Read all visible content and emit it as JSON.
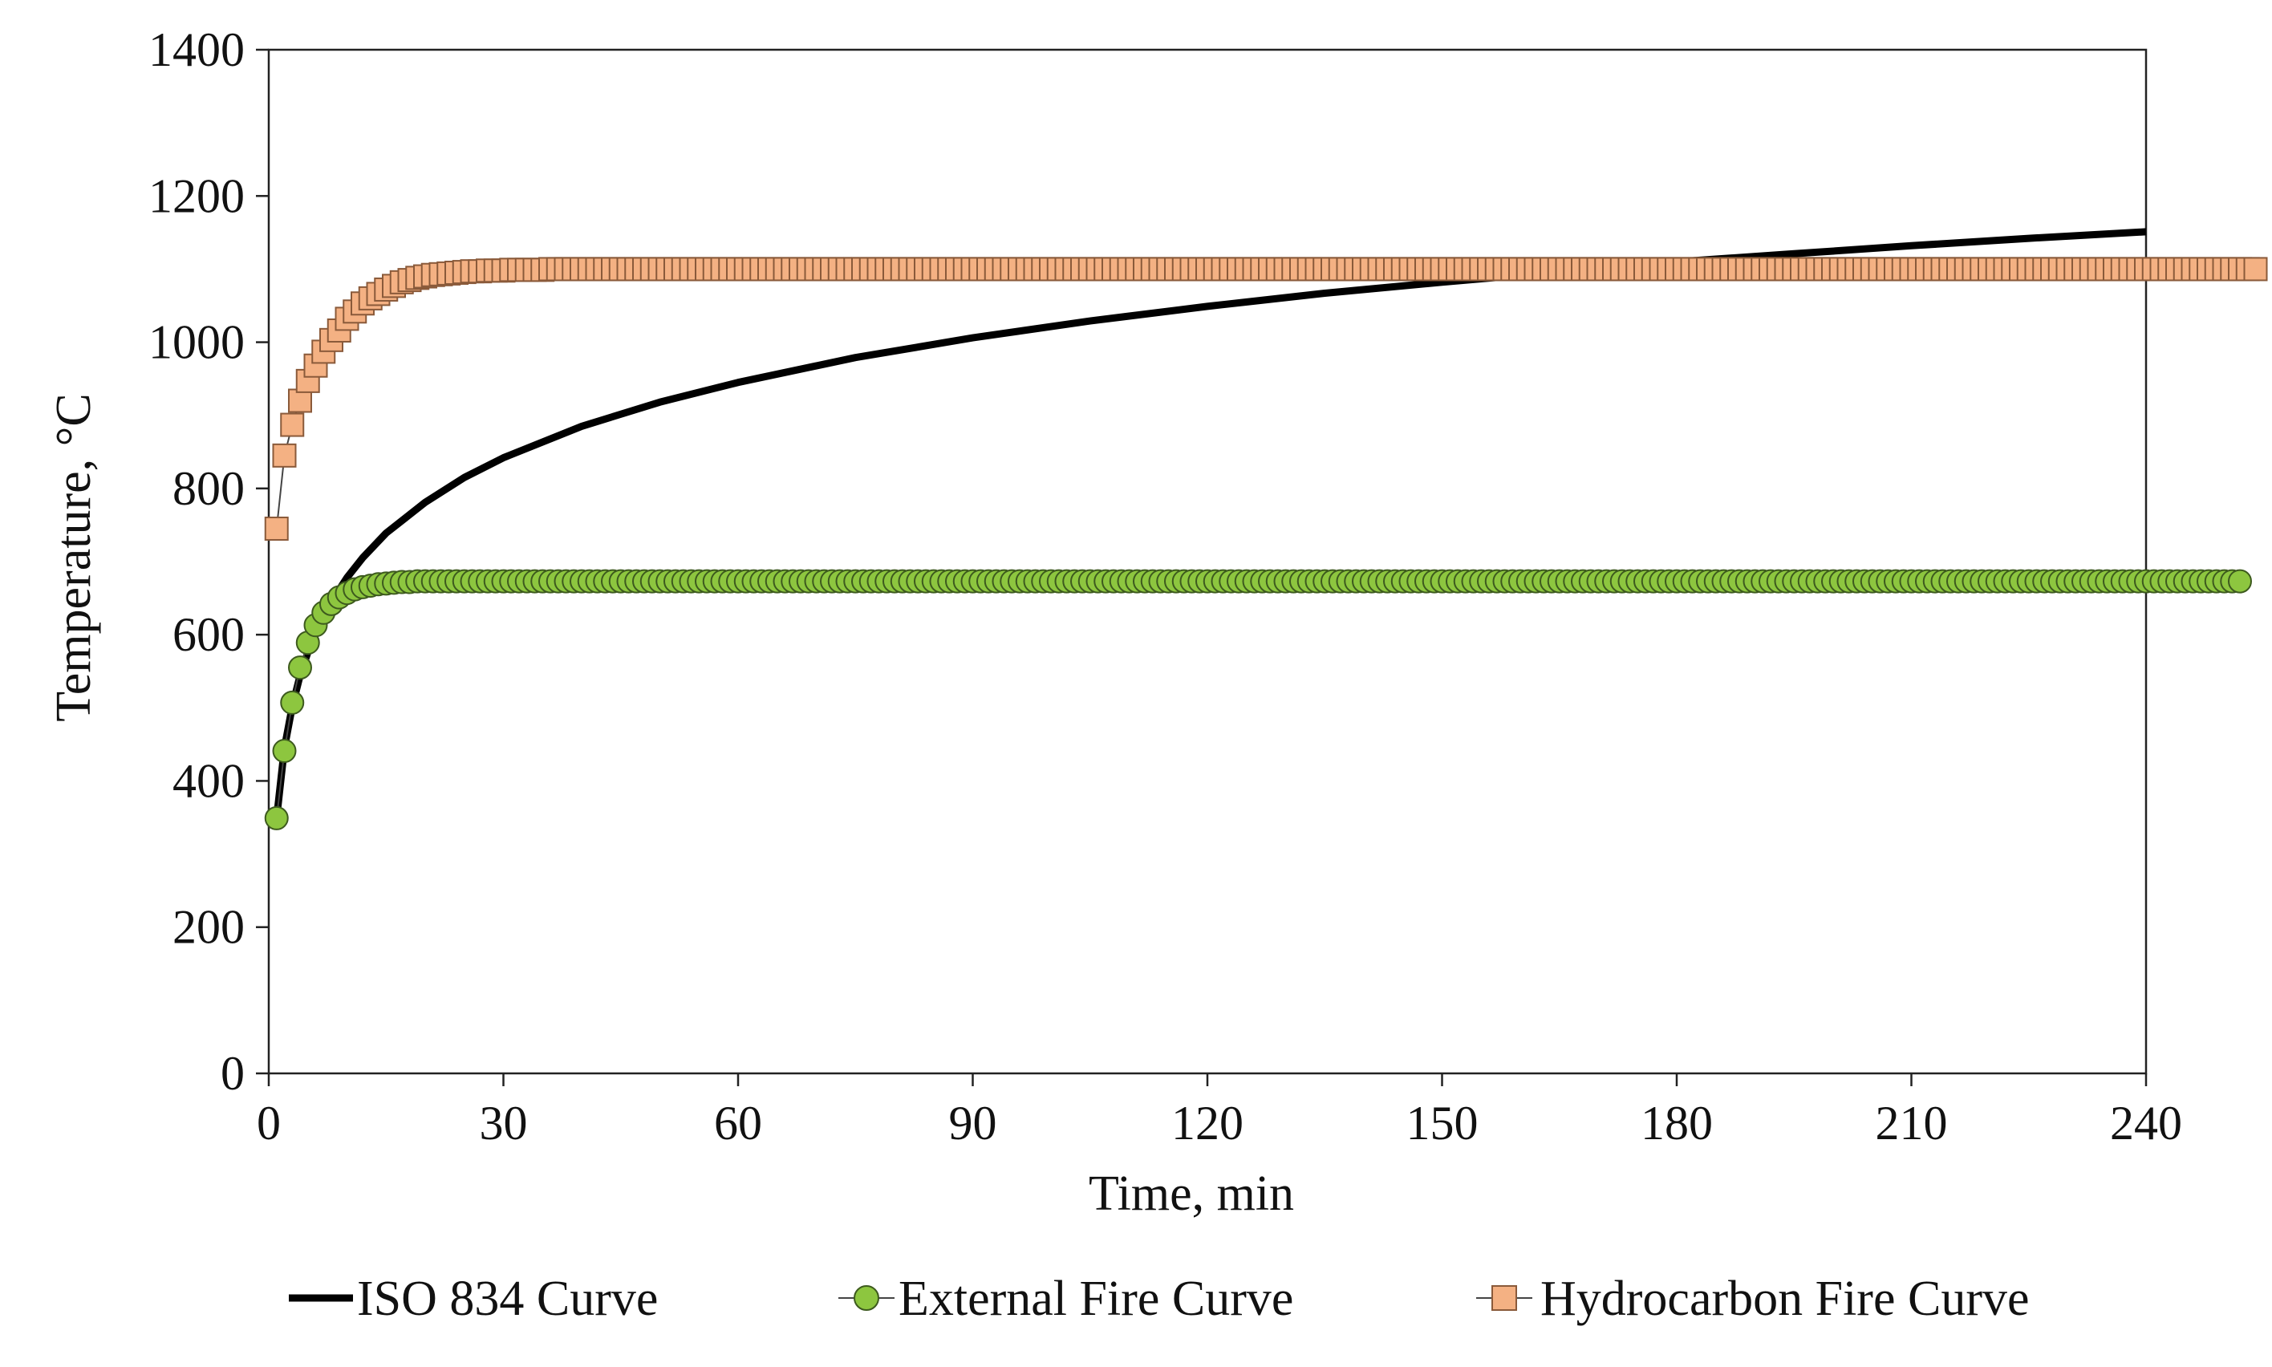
{
  "chart_data": {
    "type": "line",
    "title": "",
    "xlabel": "Time, min",
    "ylabel": "Temperature, °C",
    "xlim": [
      0,
      240
    ],
    "ylim": [
      0,
      1400
    ],
    "xticks": [
      0,
      30,
      60,
      90,
      120,
      150,
      180,
      210,
      240
    ],
    "yticks": [
      0,
      200,
      400,
      600,
      800,
      1000,
      1200,
      1400
    ],
    "xtick_labels": [
      "0",
      "30",
      "60",
      "90",
      "120",
      "150",
      "180",
      "210",
      "240"
    ],
    "ytick_labels": [
      "0",
      "200",
      "400",
      "600",
      "800",
      "1000",
      "1200",
      "1400"
    ],
    "grid": false,
    "legend_position": "bottom",
    "series": [
      {
        "name": "ISO 834 Curve",
        "marker": "none",
        "color": "#000000",
        "x": [
          1,
          2,
          3,
          4,
          5,
          6,
          8,
          10,
          12,
          15,
          20,
          25,
          30,
          40,
          50,
          60,
          75,
          90,
          105,
          120,
          135,
          150,
          165,
          180,
          195,
          210,
          225,
          240
        ],
        "y": [
          349,
          445,
          502,
          544,
          576,
          603,
          645,
          678,
          705,
          739,
          781,
          815,
          842,
          885,
          918,
          945,
          979,
          1006,
          1029,
          1049,
          1067,
          1082,
          1096,
          1110,
          1121,
          1132,
          1142,
          1151
        ]
      },
      {
        "name": "External Fire Curve",
        "marker": "circle",
        "color": "#8dc63f",
        "x_start": 1,
        "x_step": 1,
        "y": [
          349,
          441,
          507,
          555,
          589,
          613,
          630,
          642,
          651,
          657,
          662,
          665,
          667,
          669,
          670,
          671,
          672,
          672,
          673,
          673,
          673,
          673,
          673,
          673,
          673,
          673,
          673,
          673,
          673,
          673,
          673,
          673,
          673,
          673,
          673,
          673,
          673,
          673,
          673,
          673,
          673,
          673,
          673,
          673,
          673,
          673,
          673,
          673,
          673,
          673,
          673,
          673,
          673,
          673,
          673,
          673,
          673,
          673,
          673,
          673,
          673,
          673,
          673,
          673,
          673,
          673,
          673,
          673,
          673,
          673,
          673,
          673,
          673,
          673,
          673,
          673,
          673,
          673,
          673,
          673,
          673,
          673,
          673,
          673,
          673,
          673,
          673,
          673,
          673,
          673,
          673,
          673,
          673,
          673,
          673,
          673,
          673,
          673,
          673,
          673,
          673,
          673,
          673,
          673,
          673,
          673,
          673,
          673,
          673,
          673,
          673,
          673,
          673,
          673,
          673,
          673,
          673,
          673,
          673,
          673,
          673,
          673,
          673,
          673,
          673,
          673,
          673,
          673,
          673,
          673,
          673,
          673,
          673,
          673,
          673,
          673,
          673,
          673,
          673,
          673,
          673,
          673,
          673,
          673,
          673,
          673,
          673,
          673,
          673,
          673,
          673,
          673,
          673,
          673,
          673,
          673,
          673,
          673,
          673,
          673,
          673,
          673,
          673,
          673,
          673,
          673,
          673,
          673,
          673,
          673,
          673,
          673,
          673,
          673,
          673,
          673,
          673,
          673,
          673,
          673,
          673,
          673,
          673,
          673,
          673,
          673,
          673,
          673,
          673,
          673,
          673,
          673,
          673,
          673,
          673,
          673,
          673,
          673,
          673,
          673,
          673,
          673,
          673,
          673,
          673,
          673,
          673,
          673,
          673,
          673,
          673,
          673,
          673,
          673,
          673,
          673,
          673,
          673,
          673,
          673,
          673,
          673,
          673,
          673,
          673,
          673,
          673,
          673,
          673,
          673,
          673,
          673,
          673,
          673,
          673,
          673,
          673,
          673,
          673,
          673,
          673,
          673,
          673,
          673,
          673,
          673,
          673,
          673,
          673,
          673,
          673,
          673
        ]
      },
      {
        "name": "Hydrocarbon Fire Curve",
        "marker": "square",
        "color": "#f4b183",
        "x_start": 1,
        "x_step": 1,
        "y": [
          745,
          845,
          887,
          920,
          947,
          968,
          987,
          1003,
          1016,
          1032,
          1042,
          1053,
          1060,
          1066,
          1072,
          1077,
          1082,
          1085,
          1088,
          1090,
          1092,
          1093,
          1094,
          1095,
          1096,
          1097,
          1097,
          1098,
          1098,
          1098,
          1099,
          1099,
          1099,
          1099,
          1099,
          1100,
          1100,
          1100,
          1100,
          1100,
          1100,
          1100,
          1100,
          1100,
          1100,
          1100,
          1100,
          1100,
          1100,
          1100,
          1100,
          1100,
          1100,
          1100,
          1100,
          1100,
          1100,
          1100,
          1100,
          1100,
          1100,
          1100,
          1100,
          1100,
          1100,
          1100,
          1100,
          1100,
          1100,
          1100,
          1100,
          1100,
          1100,
          1100,
          1100,
          1100,
          1100,
          1100,
          1100,
          1100,
          1100,
          1100,
          1100,
          1100,
          1100,
          1100,
          1100,
          1100,
          1100,
          1100,
          1100,
          1100,
          1100,
          1100,
          1100,
          1100,
          1100,
          1100,
          1100,
          1100,
          1100,
          1100,
          1100,
          1100,
          1100,
          1100,
          1100,
          1100,
          1100,
          1100,
          1100,
          1100,
          1100,
          1100,
          1100,
          1100,
          1100,
          1100,
          1100,
          1100,
          1100,
          1100,
          1100,
          1100,
          1100,
          1100,
          1100,
          1100,
          1100,
          1100,
          1100,
          1100,
          1100,
          1100,
          1100,
          1100,
          1100,
          1100,
          1100,
          1100,
          1100,
          1100,
          1100,
          1100,
          1100,
          1100,
          1100,
          1100,
          1100,
          1100,
          1100,
          1100,
          1100,
          1100,
          1100,
          1100,
          1100,
          1100,
          1100,
          1100,
          1100,
          1100,
          1100,
          1100,
          1100,
          1100,
          1100,
          1100,
          1100,
          1100,
          1100,
          1100,
          1100,
          1100,
          1100,
          1100,
          1100,
          1100,
          1100,
          1100,
          1100,
          1100,
          1100,
          1100,
          1100,
          1100,
          1100,
          1100,
          1100,
          1100,
          1100,
          1100,
          1100,
          1100,
          1100,
          1100,
          1100,
          1100,
          1100,
          1100,
          1100,
          1100,
          1100,
          1100,
          1100,
          1100,
          1100,
          1100,
          1100,
          1100,
          1100,
          1100,
          1100,
          1100,
          1100,
          1100,
          1100,
          1100,
          1100,
          1100,
          1100,
          1100,
          1100,
          1100,
          1100,
          1100,
          1100,
          1100,
          1100,
          1100,
          1100,
          1100,
          1100,
          1100,
          1100,
          1100,
          1100,
          1100,
          1100,
          1100,
          1100,
          1100,
          1100,
          1100,
          1100,
          1100,
          1100,
          1100,
          1100,
          1100,
          1100,
          1100,
          1100,
          1100
        ]
      }
    ]
  }
}
